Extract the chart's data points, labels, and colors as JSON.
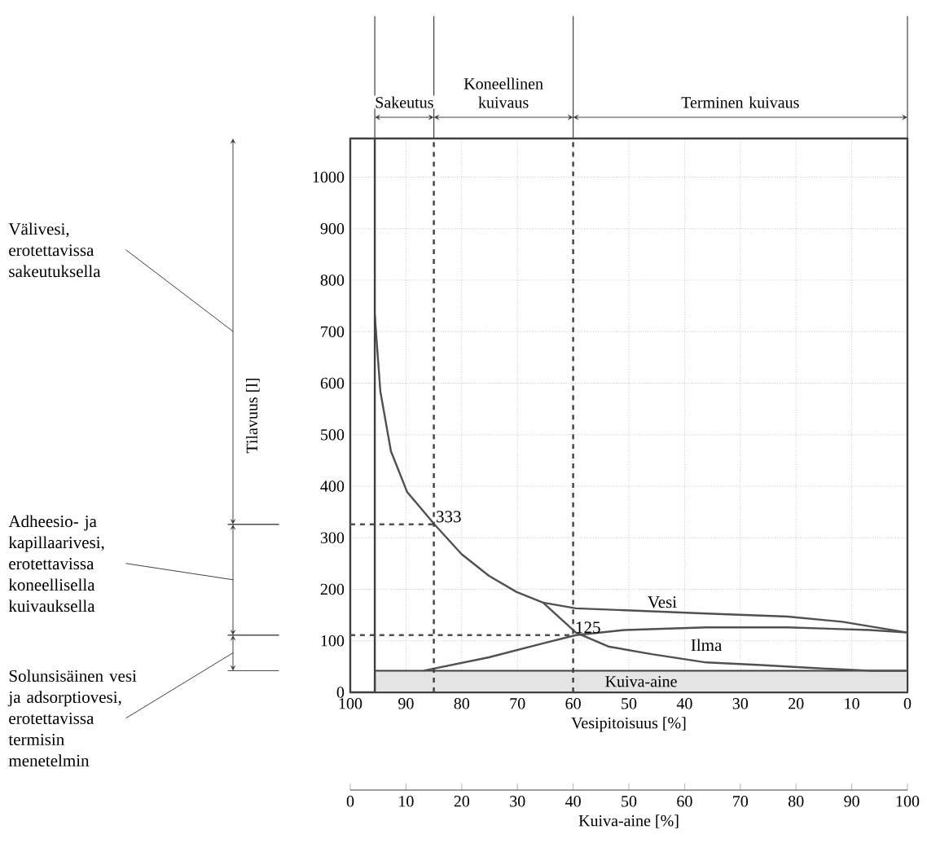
{
  "chart_data": {
    "type": "line",
    "xlabel": "Vesipitoisuus [%]",
    "ylabel": "Tilavuus [l]",
    "x2label": "Kuiva-aine [%]",
    "xlim": [
      100,
      0
    ],
    "xticks": [
      100,
      90,
      80,
      70,
      60,
      50,
      40,
      30,
      20,
      10,
      0
    ],
    "ylim": [
      0,
      1075
    ],
    "yticks": [
      0,
      100,
      200,
      300,
      400,
      500,
      600,
      700,
      800,
      900,
      1000
    ],
    "x2lim": [
      0,
      100
    ],
    "x2ticks": [
      0,
      10,
      20,
      30,
      40,
      50,
      60,
      70,
      80,
      90,
      100
    ],
    "grid": true,
    "marker": "none",
    "series": [
      {
        "type": "area",
        "name": "Kuiva-aine",
        "color": "#e4e4e4",
        "x": [
          95.6,
          0
        ],
        "values": [
          42,
          42
        ]
      },
      {
        "color": "#505050",
        "line_style": "solid",
        "x": [
          95.6,
          94.6,
          92.7,
          89.8,
          84.9,
          80,
          75.1,
          70.2,
          65.4,
          59.5,
          53.7,
          45.9,
          36.1,
          26.3,
          16.6,
          6.8,
          0
        ],
        "values": [
          732,
          584,
          468,
          389,
          326,
          268,
          226,
          195,
          174,
          116,
          89,
          74,
          58,
          53,
          47,
          42,
          42
        ]
      },
      {
        "color": "#505050",
        "line_style": "solid",
        "x": [
          65.4,
          59.5,
          47.8,
          36.1,
          21.5,
          11.7,
          0
        ],
        "values": [
          174,
          163,
          158,
          153,
          147,
          137,
          116
        ]
      },
      {
        "color": "#505050",
        "line_style": "solid",
        "x": [
          86.8,
          75.1,
          65.4,
          59.5,
          50.7,
          36.1,
          21.5,
          6.8,
          0
        ],
        "values": [
          42,
          68,
          95,
          111,
          121,
          126,
          126,
          121,
          116
        ]
      },
      {
        "color": "#505050",
        "line_style": "dashed",
        "x": [
          100,
          85
        ],
        "values": [
          326,
          326
        ]
      },
      {
        "color": "#505050",
        "line_style": "dashed",
        "x": [
          100,
          60
        ],
        "values": [
          111,
          111
        ]
      }
    ],
    "ref_lines": [
      {
        "axis": "x",
        "value": 95.6,
        "line_style": "solid"
      },
      {
        "axis": "x",
        "value": 85,
        "line_style": "dashed"
      },
      {
        "axis": "x",
        "value": 60,
        "line_style": "dashed"
      }
    ],
    "annotations": [
      "Sakeutus",
      "Koneellinen kuivaus",
      "Terminen kuivaus",
      "Välivesi, erotettavissa sakeutuksella",
      "Adheesio- ja kapillaarivesi, erotettavissa koneellisella kuivauksella",
      "Solunsisäinen vesi ja adsorptiovesi, erotettavissa termisin menetelmin",
      "Ilma",
      {
        "text": "333",
        "x": 85,
        "y": 326
      },
      {
        "text": "125",
        "x": 60,
        "y": 111
      },
      {
        "text": "Vesi",
        "x": 47,
        "y": 160
      }
    ]
  }
}
